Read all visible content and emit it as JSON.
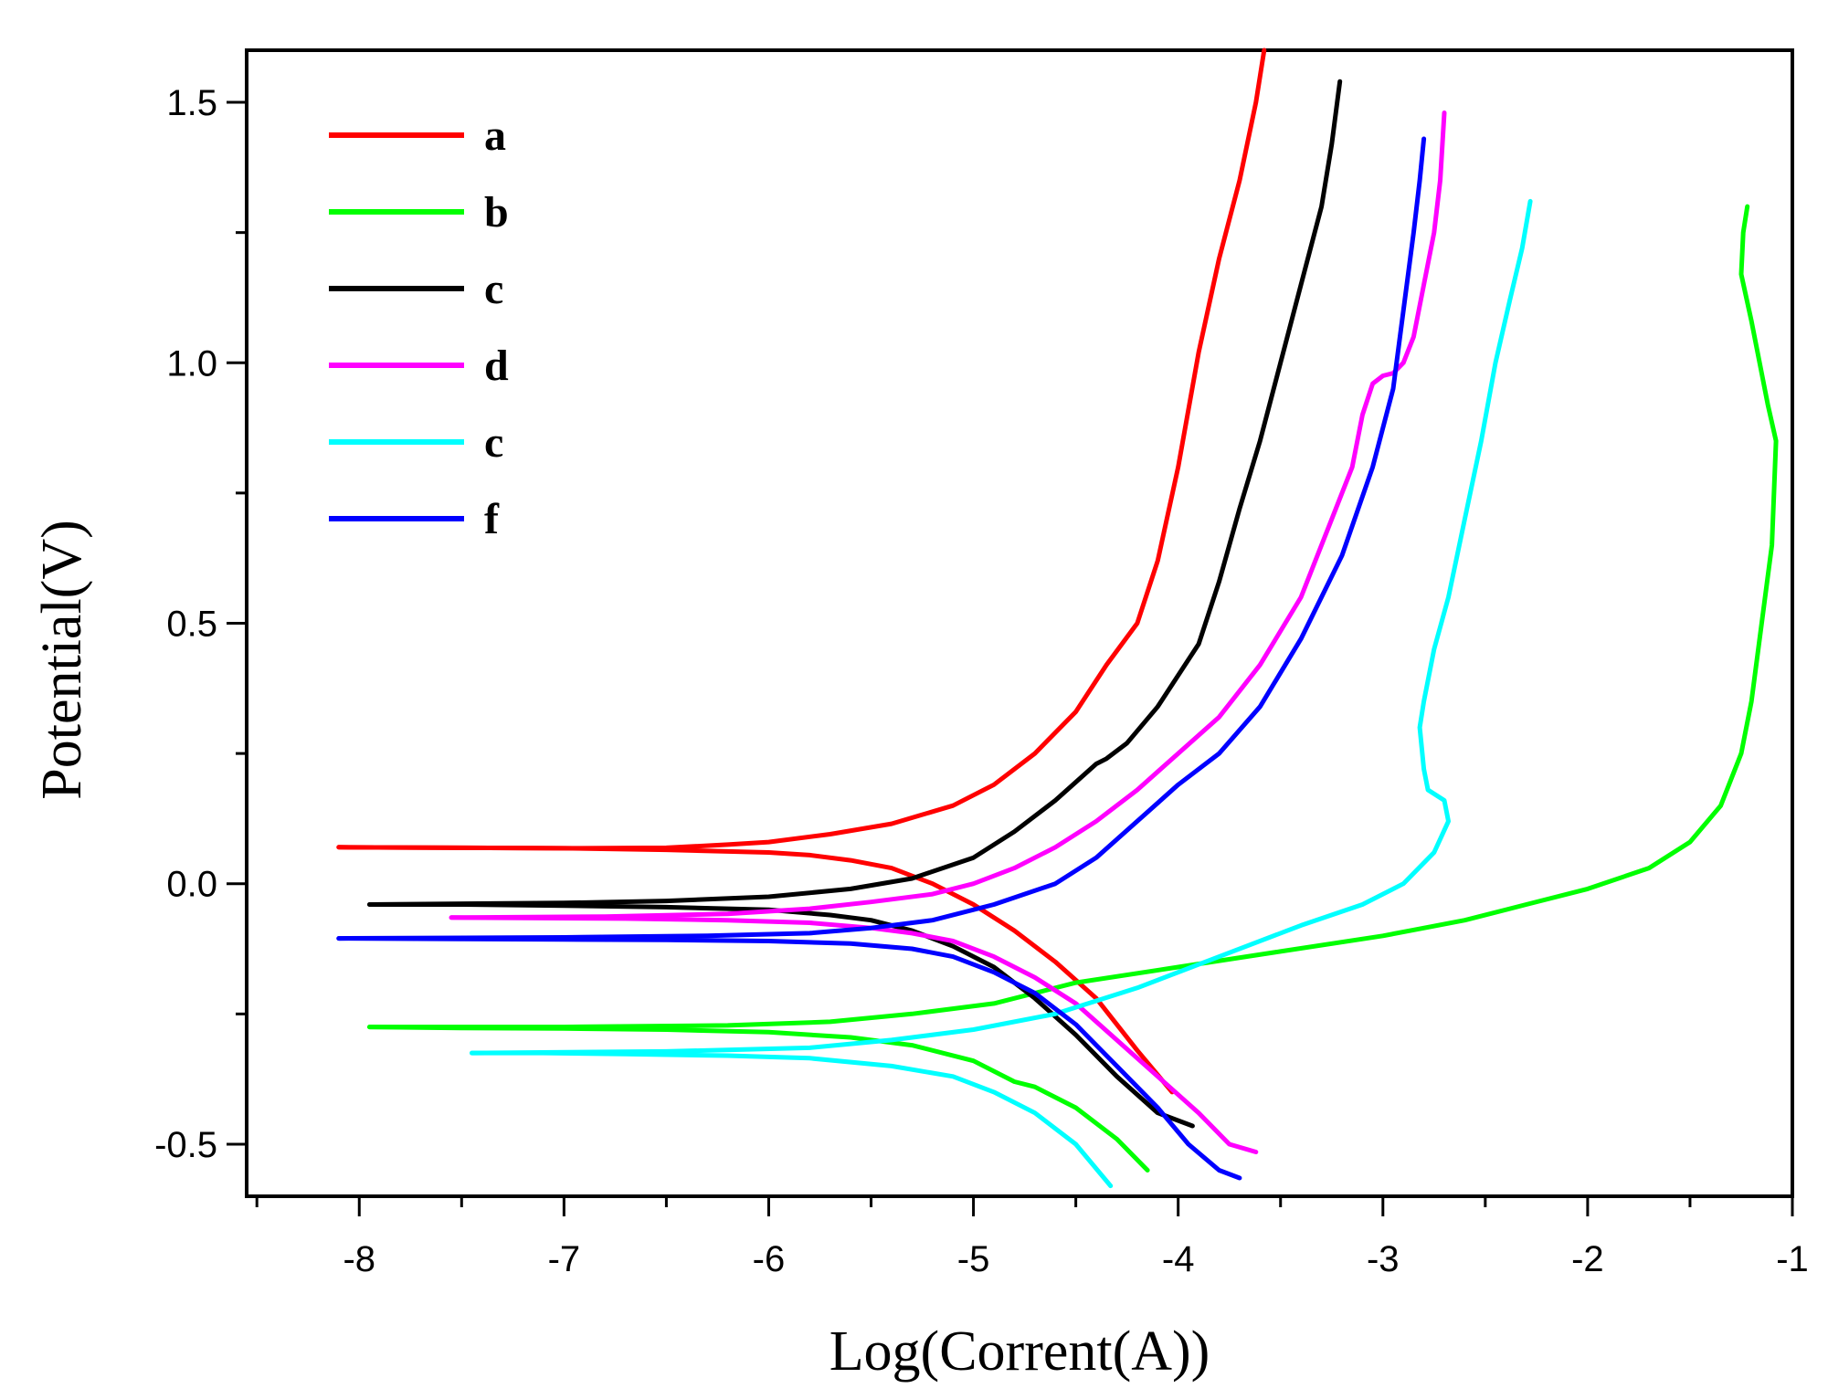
{
  "chart_data": {
    "type": "line",
    "title": "",
    "xlabel": "Log(Corrent(A))",
    "ylabel": "Potential(V)",
    "xlim": [
      -8.55,
      -1.0
    ],
    "ylim": [
      -0.6,
      1.6
    ],
    "x_ticks": [
      -8,
      -7,
      -6,
      -5,
      -4,
      -3,
      -2,
      -1
    ],
    "x_tick_labels": [
      "-8",
      "-7",
      "-6",
      "-5",
      "-4",
      "-3",
      "-2",
      "-1"
    ],
    "y_ticks": [
      -0.5,
      0.0,
      0.5,
      1.0,
      1.5
    ],
    "y_tick_labels": [
      "-0.5",
      "0.0",
      "0.5",
      "1.0",
      "1.5"
    ],
    "grid": false,
    "legend_position": "top-left",
    "series": [
      {
        "name": "a",
        "color": "#ff0000",
        "cathodic": [
          [
            -4.03,
            -0.4
          ],
          [
            -4.2,
            -0.32
          ],
          [
            -4.4,
            -0.22
          ],
          [
            -4.6,
            -0.15
          ],
          [
            -4.8,
            -0.09
          ],
          [
            -5.0,
            -0.04
          ],
          [
            -5.2,
            0.0
          ],
          [
            -5.4,
            0.03
          ],
          [
            -5.6,
            0.045
          ],
          [
            -5.8,
            0.055
          ],
          [
            -6.0,
            0.06
          ],
          [
            -6.5,
            0.065
          ],
          [
            -7.0,
            0.068
          ],
          [
            -7.5,
            0.069
          ],
          [
            -8.1,
            0.07
          ]
        ],
        "anodic": [
          [
            -8.1,
            0.07
          ],
          [
            -7.0,
            0.068
          ],
          [
            -6.5,
            0.069
          ],
          [
            -6.2,
            0.075
          ],
          [
            -6.0,
            0.08
          ],
          [
            -5.7,
            0.095
          ],
          [
            -5.4,
            0.115
          ],
          [
            -5.1,
            0.15
          ],
          [
            -4.9,
            0.19
          ],
          [
            -4.7,
            0.25
          ],
          [
            -4.5,
            0.33
          ],
          [
            -4.35,
            0.42
          ],
          [
            -4.2,
            0.5
          ],
          [
            -4.1,
            0.62
          ],
          [
            -4.0,
            0.8
          ],
          [
            -3.9,
            1.02
          ],
          [
            -3.8,
            1.2
          ],
          [
            -3.7,
            1.35
          ],
          [
            -3.62,
            1.5
          ],
          [
            -3.58,
            1.6
          ]
        ]
      },
      {
        "name": "b",
        "color": "#00ff00",
        "cathodic": [
          [
            -4.15,
            -0.55
          ],
          [
            -4.3,
            -0.49
          ],
          [
            -4.5,
            -0.43
          ],
          [
            -4.7,
            -0.39
          ],
          [
            -4.8,
            -0.38
          ],
          [
            -5.0,
            -0.34
          ],
          [
            -5.3,
            -0.31
          ],
          [
            -5.6,
            -0.295
          ],
          [
            -6.0,
            -0.285
          ],
          [
            -6.5,
            -0.28
          ],
          [
            -7.0,
            -0.278
          ],
          [
            -7.5,
            -0.277
          ],
          [
            -7.95,
            -0.275
          ]
        ],
        "anodic": [
          [
            -7.95,
            -0.275
          ],
          [
            -7.0,
            -0.275
          ],
          [
            -6.2,
            -0.272
          ],
          [
            -5.7,
            -0.265
          ],
          [
            -5.3,
            -0.25
          ],
          [
            -4.9,
            -0.23
          ],
          [
            -4.5,
            -0.19
          ],
          [
            -4.0,
            -0.16
          ],
          [
            -3.5,
            -0.13
          ],
          [
            -3.0,
            -0.1
          ],
          [
            -2.6,
            -0.07
          ],
          [
            -2.3,
            -0.04
          ],
          [
            -2.0,
            -0.01
          ],
          [
            -1.7,
            0.03
          ],
          [
            -1.5,
            0.08
          ],
          [
            -1.35,
            0.15
          ],
          [
            -1.25,
            0.25
          ],
          [
            -1.2,
            0.35
          ],
          [
            -1.15,
            0.5
          ],
          [
            -1.1,
            0.65
          ],
          [
            -1.08,
            0.85
          ],
          [
            -1.12,
            0.92
          ],
          [
            -1.15,
            0.98
          ],
          [
            -1.2,
            1.08
          ],
          [
            -1.25,
            1.17
          ],
          [
            -1.24,
            1.25
          ],
          [
            -1.22,
            1.3
          ]
        ]
      },
      {
        "name": "c",
        "color": "#000000",
        "cathodic": [
          [
            -3.93,
            -0.465
          ],
          [
            -4.1,
            -0.44
          ],
          [
            -4.3,
            -0.37
          ],
          [
            -4.5,
            -0.29
          ],
          [
            -4.7,
            -0.22
          ],
          [
            -4.9,
            -0.16
          ],
          [
            -5.1,
            -0.12
          ],
          [
            -5.3,
            -0.09
          ],
          [
            -5.5,
            -0.07
          ],
          [
            -5.7,
            -0.06
          ],
          [
            -6.0,
            -0.05
          ],
          [
            -6.5,
            -0.045
          ],
          [
            -7.0,
            -0.042
          ],
          [
            -7.5,
            -0.04
          ],
          [
            -7.95,
            -0.04
          ]
        ],
        "anodic": [
          [
            -7.95,
            -0.04
          ],
          [
            -7.0,
            -0.037
          ],
          [
            -6.5,
            -0.033
          ],
          [
            -6.0,
            -0.025
          ],
          [
            -5.6,
            -0.01
          ],
          [
            -5.3,
            0.01
          ],
          [
            -5.0,
            0.05
          ],
          [
            -4.8,
            0.1
          ],
          [
            -4.6,
            0.16
          ],
          [
            -4.4,
            0.23
          ],
          [
            -4.35,
            0.24
          ],
          [
            -4.25,
            0.27
          ],
          [
            -4.1,
            0.34
          ],
          [
            -3.9,
            0.46
          ],
          [
            -3.8,
            0.58
          ],
          [
            -3.7,
            0.72
          ],
          [
            -3.6,
            0.85
          ],
          [
            -3.5,
            1.0
          ],
          [
            -3.4,
            1.15
          ],
          [
            -3.3,
            1.3
          ],
          [
            -3.25,
            1.42
          ],
          [
            -3.21,
            1.54
          ]
        ]
      },
      {
        "name": "d",
        "color": "#ff00ff",
        "cathodic": [
          [
            -3.62,
            -0.515
          ],
          [
            -3.75,
            -0.5
          ],
          [
            -3.9,
            -0.44
          ],
          [
            -4.1,
            -0.37
          ],
          [
            -4.3,
            -0.3
          ],
          [
            -4.5,
            -0.23
          ],
          [
            -4.7,
            -0.18
          ],
          [
            -4.9,
            -0.14
          ],
          [
            -5.1,
            -0.11
          ],
          [
            -5.3,
            -0.095
          ],
          [
            -5.5,
            -0.085
          ],
          [
            -5.8,
            -0.075
          ],
          [
            -6.2,
            -0.07
          ],
          [
            -6.7,
            -0.067
          ],
          [
            -7.1,
            -0.066
          ],
          [
            -7.55,
            -0.065
          ]
        ],
        "anodic": [
          [
            -7.55,
            -0.065
          ],
          [
            -6.8,
            -0.063
          ],
          [
            -6.2,
            -0.058
          ],
          [
            -5.8,
            -0.048
          ],
          [
            -5.5,
            -0.035
          ],
          [
            -5.2,
            -0.02
          ],
          [
            -5.0,
            0.0
          ],
          [
            -4.8,
            0.03
          ],
          [
            -4.6,
            0.07
          ],
          [
            -4.4,
            0.12
          ],
          [
            -4.2,
            0.18
          ],
          [
            -4.0,
            0.25
          ],
          [
            -3.8,
            0.32
          ],
          [
            -3.6,
            0.42
          ],
          [
            -3.4,
            0.55
          ],
          [
            -3.25,
            0.7
          ],
          [
            -3.15,
            0.8
          ],
          [
            -3.1,
            0.9
          ],
          [
            -3.05,
            0.96
          ],
          [
            -3.0,
            0.975
          ],
          [
            -2.95,
            0.98
          ],
          [
            -2.9,
            1.0
          ],
          [
            -2.85,
            1.05
          ],
          [
            -2.8,
            1.15
          ],
          [
            -2.75,
            1.25
          ],
          [
            -2.72,
            1.35
          ],
          [
            -2.7,
            1.48
          ]
        ]
      },
      {
        "name": "c",
        "color": "#00ffff",
        "cathodic": [
          [
            -4.33,
            -0.58
          ],
          [
            -4.5,
            -0.5
          ],
          [
            -4.7,
            -0.44
          ],
          [
            -4.9,
            -0.4
          ],
          [
            -5.1,
            -0.37
          ],
          [
            -5.4,
            -0.35
          ],
          [
            -5.8,
            -0.335
          ],
          [
            -6.2,
            -0.33
          ],
          [
            -6.7,
            -0.327
          ],
          [
            -7.1,
            -0.325
          ],
          [
            -7.45,
            -0.325
          ]
        ],
        "anodic": [
          [
            -7.45,
            -0.325
          ],
          [
            -6.5,
            -0.322
          ],
          [
            -5.8,
            -0.315
          ],
          [
            -5.4,
            -0.3
          ],
          [
            -5.0,
            -0.28
          ],
          [
            -4.6,
            -0.25
          ],
          [
            -4.2,
            -0.2
          ],
          [
            -3.8,
            -0.14
          ],
          [
            -3.4,
            -0.08
          ],
          [
            -3.1,
            -0.04
          ],
          [
            -2.9,
            0.0
          ],
          [
            -2.75,
            0.06
          ],
          [
            -2.68,
            0.12
          ],
          [
            -2.7,
            0.16
          ],
          [
            -2.78,
            0.18
          ],
          [
            -2.8,
            0.22
          ],
          [
            -2.82,
            0.3
          ],
          [
            -2.8,
            0.35
          ],
          [
            -2.75,
            0.45
          ],
          [
            -2.68,
            0.55
          ],
          [
            -2.6,
            0.7
          ],
          [
            -2.52,
            0.85
          ],
          [
            -2.45,
            1.0
          ],
          [
            -2.38,
            1.12
          ],
          [
            -2.32,
            1.22
          ],
          [
            -2.28,
            1.31
          ]
        ]
      },
      {
        "name": "f",
        "color": "#0000ff",
        "cathodic": [
          [
            -3.7,
            -0.565
          ],
          [
            -3.8,
            -0.55
          ],
          [
            -3.95,
            -0.5
          ],
          [
            -4.1,
            -0.43
          ],
          [
            -4.3,
            -0.35
          ],
          [
            -4.5,
            -0.27
          ],
          [
            -4.7,
            -0.21
          ],
          [
            -4.9,
            -0.17
          ],
          [
            -5.1,
            -0.14
          ],
          [
            -5.3,
            -0.125
          ],
          [
            -5.6,
            -0.115
          ],
          [
            -6.0,
            -0.11
          ],
          [
            -6.5,
            -0.108
          ],
          [
            -7.0,
            -0.107
          ],
          [
            -7.5,
            -0.106
          ],
          [
            -8.1,
            -0.105
          ]
        ],
        "anodic": [
          [
            -8.1,
            -0.105
          ],
          [
            -7.0,
            -0.103
          ],
          [
            -6.3,
            -0.1
          ],
          [
            -5.8,
            -0.095
          ],
          [
            -5.5,
            -0.085
          ],
          [
            -5.2,
            -0.07
          ],
          [
            -4.9,
            -0.04
          ],
          [
            -4.6,
            0.0
          ],
          [
            -4.4,
            0.05
          ],
          [
            -4.2,
            0.12
          ],
          [
            -4.0,
            0.19
          ],
          [
            -3.8,
            0.25
          ],
          [
            -3.6,
            0.34
          ],
          [
            -3.4,
            0.47
          ],
          [
            -3.2,
            0.63
          ],
          [
            -3.05,
            0.8
          ],
          [
            -2.95,
            0.95
          ],
          [
            -2.9,
            1.1
          ],
          [
            -2.85,
            1.25
          ],
          [
            -2.82,
            1.35
          ],
          [
            -2.8,
            1.43
          ]
        ]
      }
    ]
  }
}
